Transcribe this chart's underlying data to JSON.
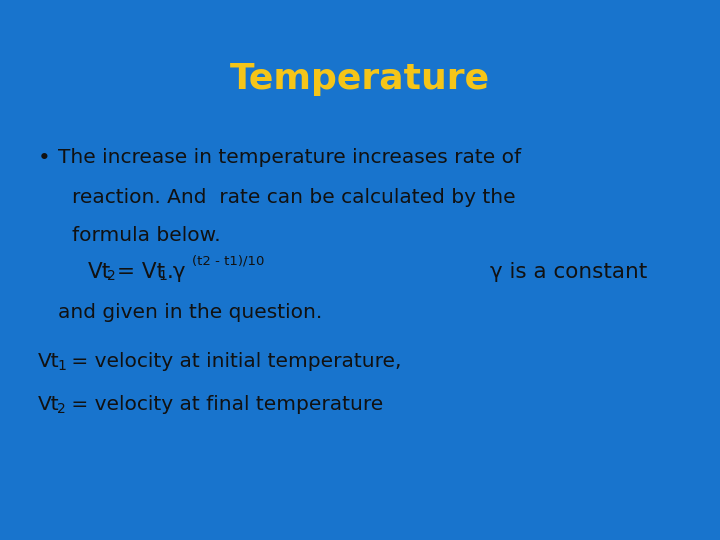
{
  "title": "Temperature",
  "title_color": "#F5C518",
  "title_fontsize": 26,
  "background_color": "#1874CD",
  "text_color": "#111111",
  "figsize": [
    7.2,
    5.4
  ],
  "dpi": 100,
  "bullet_char": "•",
  "line1": "The increase in temperature increases rate of",
  "line2": "reaction. And  rate can be calculated by the",
  "line3": "formula below.",
  "formula_line2": "and given in the question.",
  "vt1_rest": " = velocity at initial temperature,",
  "vt2_rest": " = velocity at final temperature",
  "main_fontsize": 14.5,
  "sub_fontsize": 10,
  "sup_fontsize": 9.5
}
